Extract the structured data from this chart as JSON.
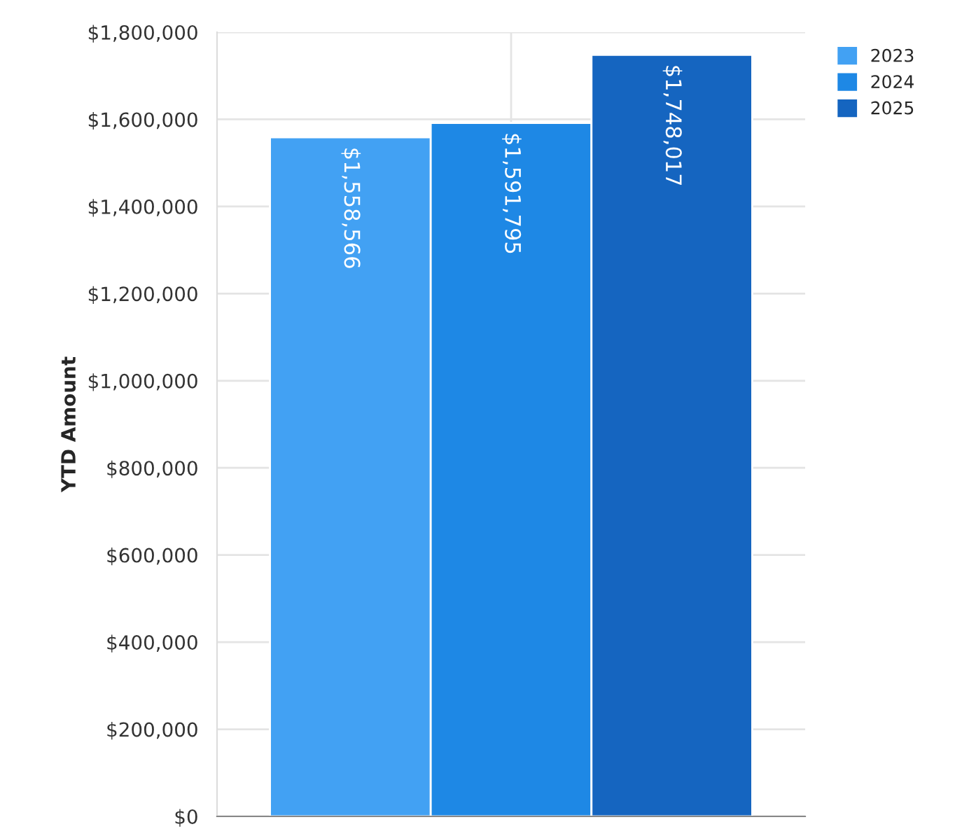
{
  "chart_data": {
    "type": "bar",
    "ylabel": "YTD Amount",
    "categories": [
      null
    ],
    "series": [
      {
        "name": "2023",
        "color": "#42a1f3",
        "values": [
          1558566
        ],
        "value_labels": [
          "$1,558,566"
        ]
      },
      {
        "name": "2024",
        "color": "#1e88e5",
        "values": [
          1591795
        ],
        "value_labels": [
          "$1,591,795"
        ]
      },
      {
        "name": "2025",
        "color": "#1565c0",
        "values": [
          1748017
        ],
        "value_labels": [
          "$1,748,017"
        ]
      }
    ],
    "ylim": [
      0,
      1800000
    ],
    "yticks": [
      {
        "value": 0,
        "label": "$0"
      },
      {
        "value": 200000,
        "label": "$200,000"
      },
      {
        "value": 400000,
        "label": "$400,000"
      },
      {
        "value": 600000,
        "label": "$600,000"
      },
      {
        "value": 800000,
        "label": "$800,000"
      },
      {
        "value": 1000000,
        "label": "$1,000,000"
      },
      {
        "value": 1200000,
        "label": "$1,200,000"
      },
      {
        "value": 1400000,
        "label": "$1,400,000"
      },
      {
        "value": 1600000,
        "label": "$1,600,000"
      },
      {
        "value": 1800000,
        "label": "$1,800,000"
      }
    ],
    "grid": true,
    "legend": "top right"
  }
}
